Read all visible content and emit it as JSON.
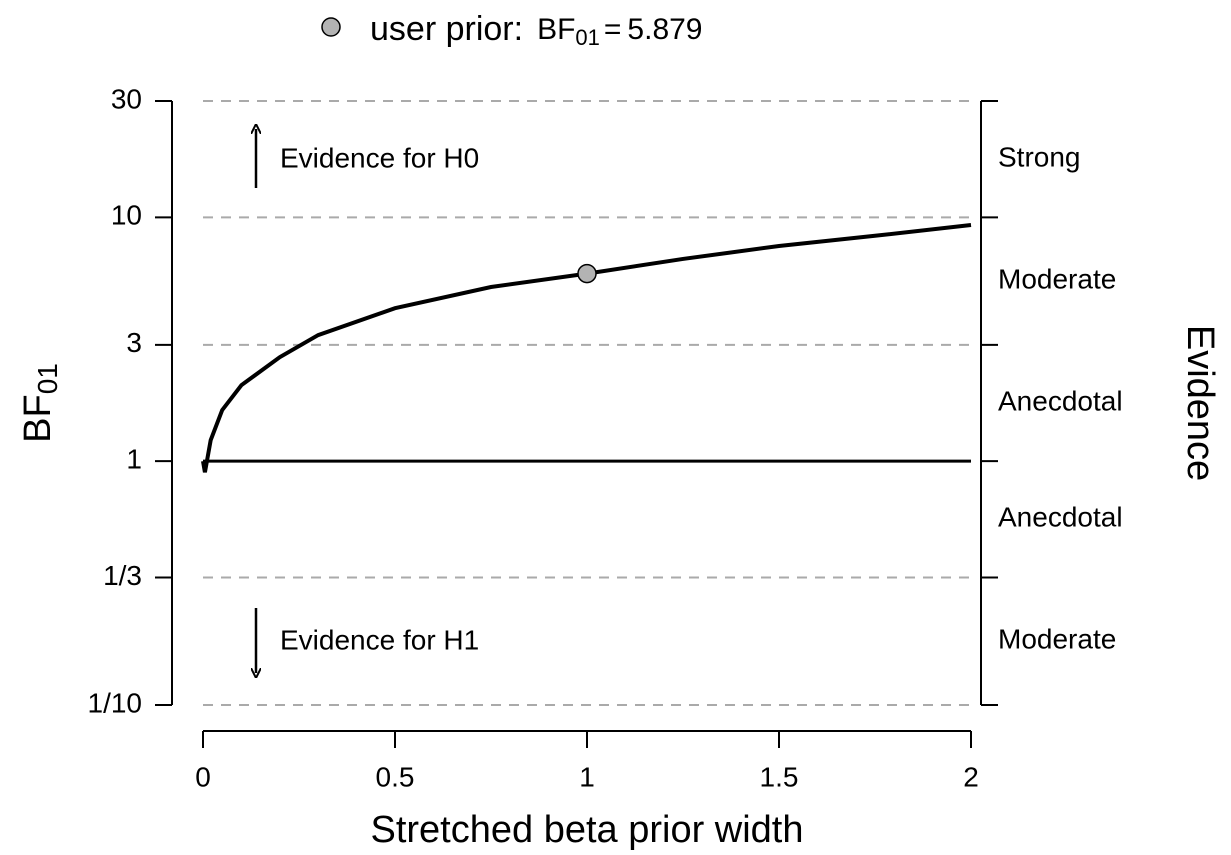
{
  "chart_data": {
    "type": "line",
    "xlabel": "Stretched beta prior width",
    "ylabel": "BF",
    "ylabel_subscript": "01",
    "right_axis_label": "Evidence",
    "evidence_labels": [
      "Moderate",
      "Anecdotal",
      "Anecdotal",
      "Moderate",
      "Strong"
    ],
    "annotations": [
      "Evidence for H0",
      "Evidence for H1"
    ],
    "x": [
      0,
      0.005,
      0.02,
      0.05,
      0.1,
      0.2,
      0.3,
      0.5,
      0.75,
      1,
      1.25,
      1.5,
      1.75,
      2
    ],
    "values": [
      1,
      0.9,
      1.22,
      1.62,
      2.05,
      2.67,
      3.29,
      4.24,
      5.18,
      5.879,
      6.75,
      7.63,
      8.4,
      9.3
    ],
    "color": "#000000",
    "points": [
      {
        "name": "user prior:",
        "x": 1,
        "y": 5.879,
        "color": "#b3b3b3"
      }
    ],
    "legend": {
      "stat": "BF",
      "stat_subscript": "01",
      "relation": "="
    },
    "reference_line": 1,
    "xlim": [
      0,
      2
    ],
    "xticks": [
      0,
      0.5,
      1,
      1.5,
      2
    ],
    "ylim": [
      0.1,
      30
    ],
    "yticks": [
      {
        "value": 0.1,
        "label": "1/10"
      },
      {
        "value": 0.333333,
        "label": "1/3"
      },
      1,
      3,
      10,
      30
    ],
    "log_y": true,
    "grid": true
  }
}
